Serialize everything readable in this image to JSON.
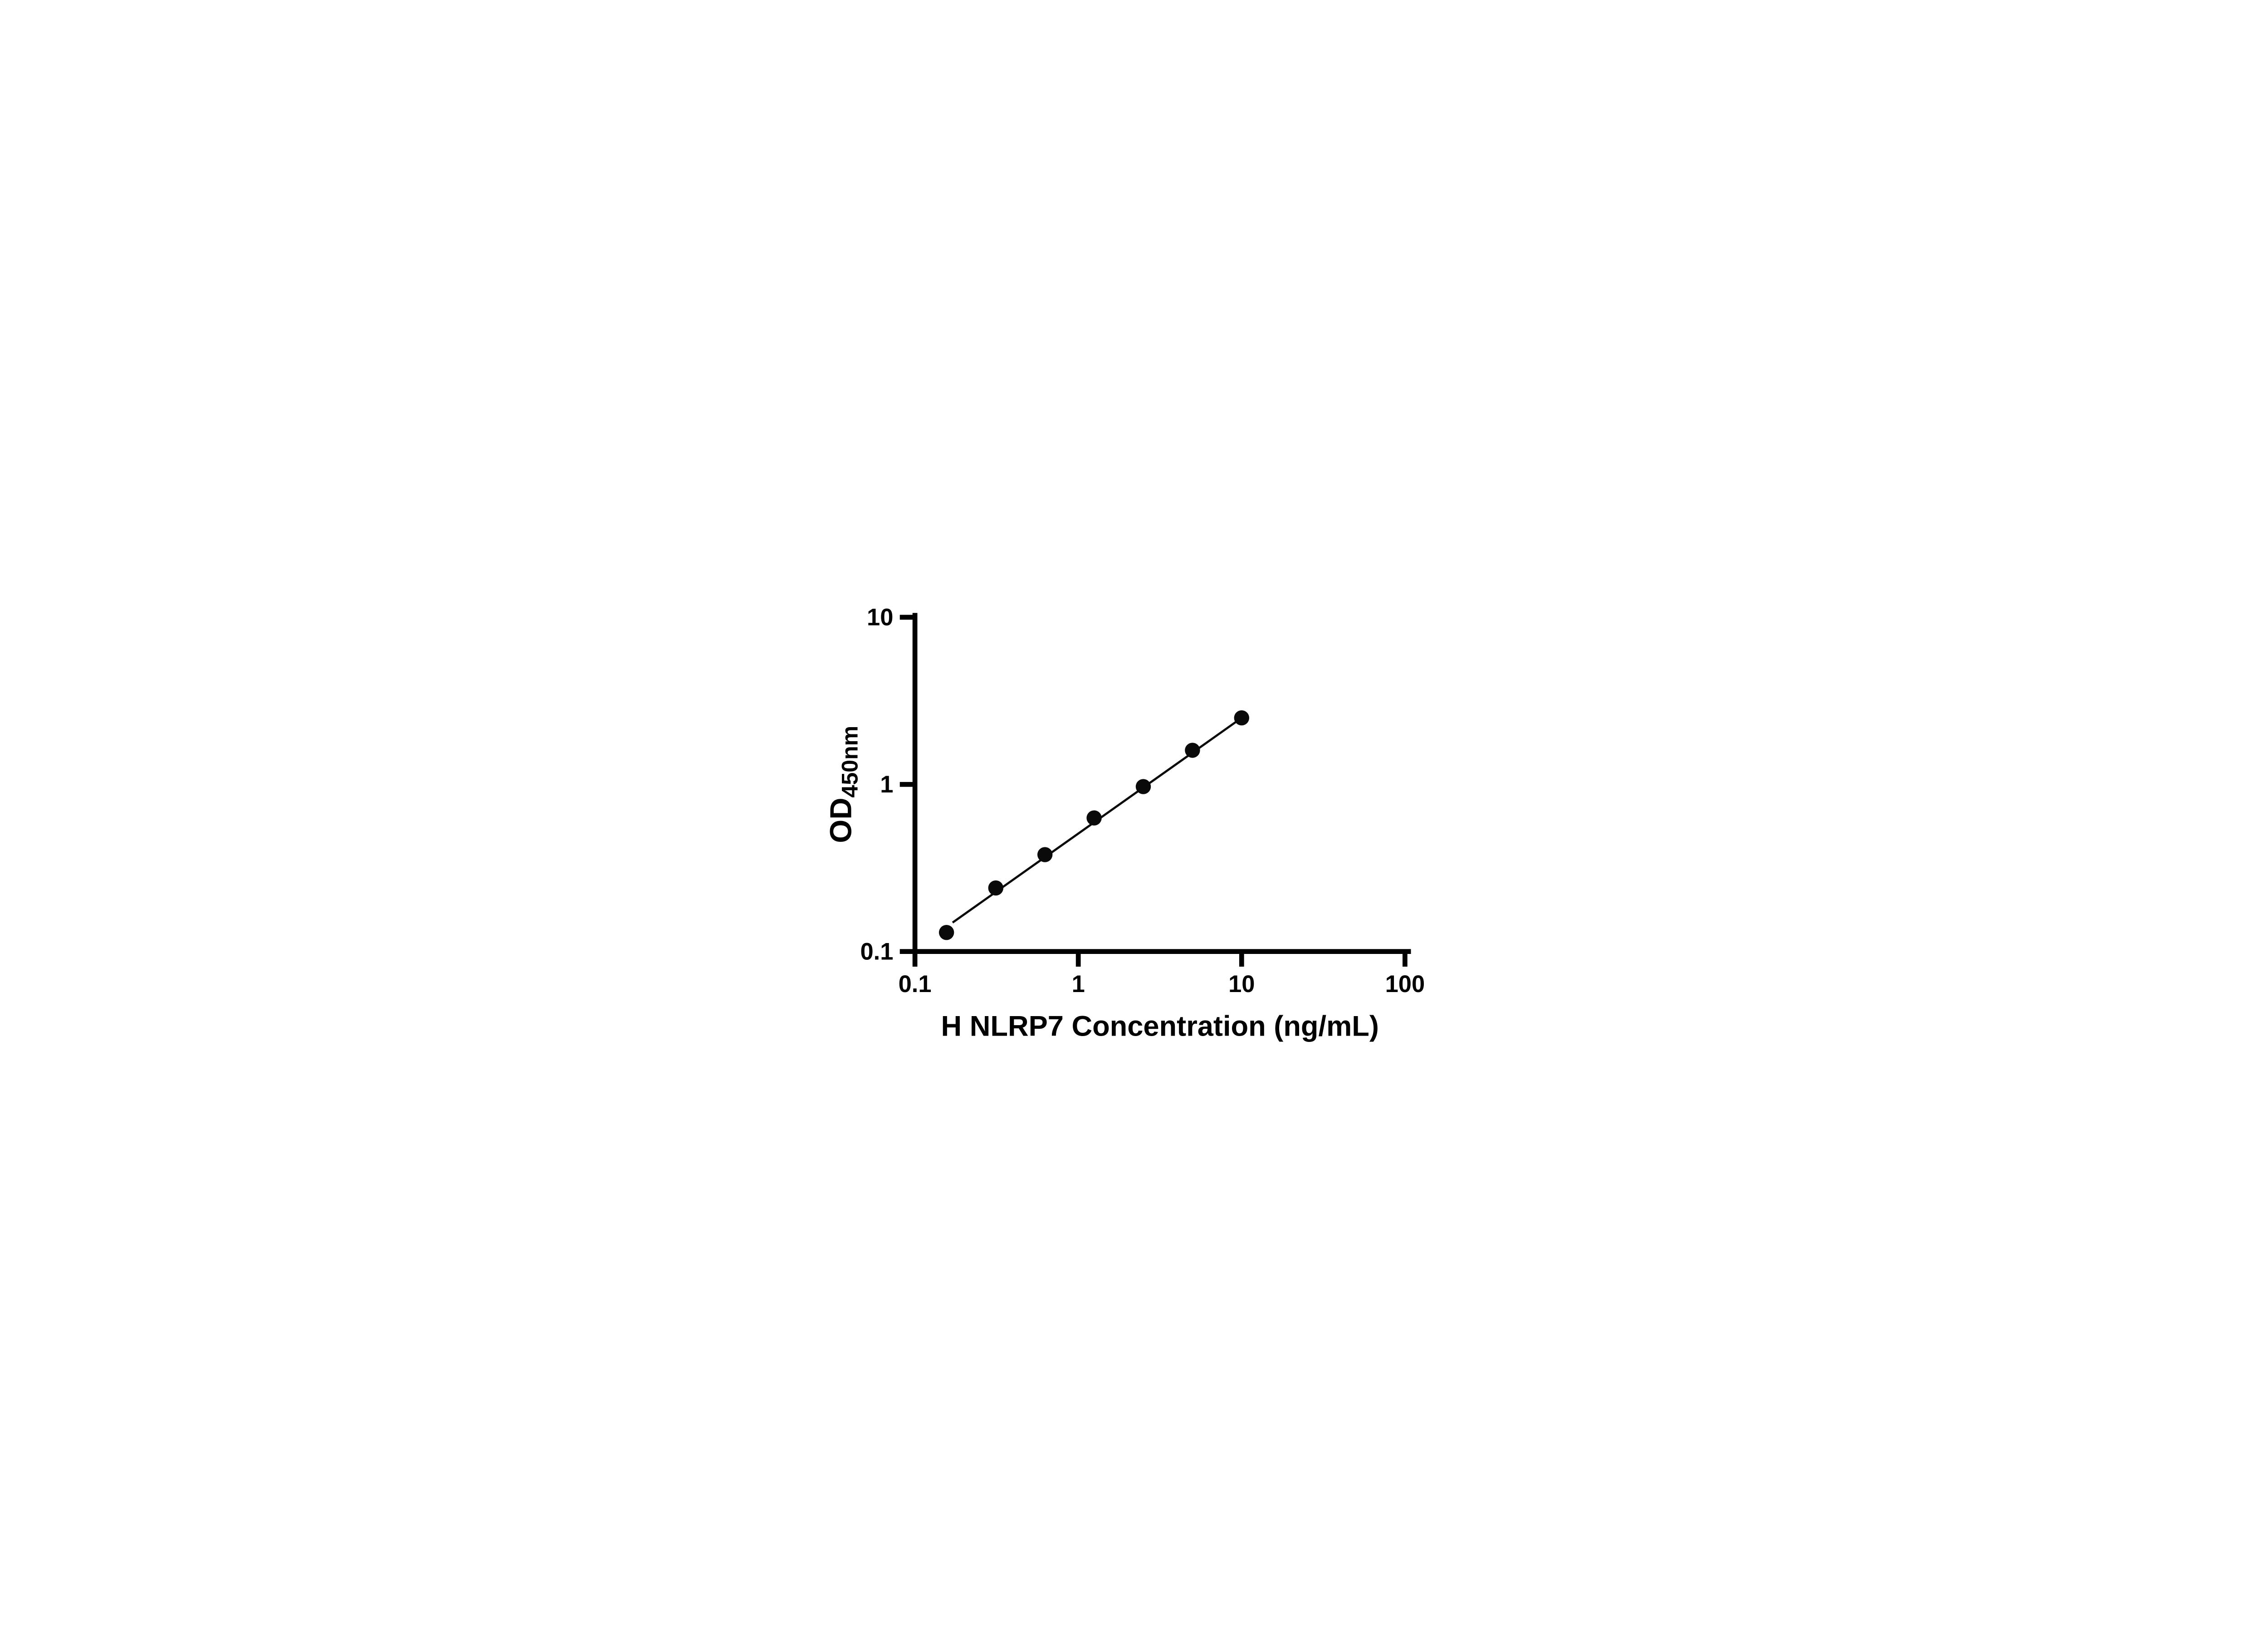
{
  "page": {
    "background": "#ffffff"
  },
  "chart_data": {
    "type": "scatter",
    "title": "",
    "xlabel": "H NLRP7 Concentration (ng/mL)",
    "ylabel": "OD450nm",
    "ylabel_main": "OD",
    "ylabel_sub": "450nm",
    "x_scale": "log",
    "y_scale": "log",
    "xlim": [
      0.1,
      100
    ],
    "ylim": [
      0.1,
      10
    ],
    "x_ticks": [
      "0.1",
      "1",
      "10",
      "100"
    ],
    "y_ticks": [
      "0.1",
      "1",
      "10"
    ],
    "grid": false,
    "legend": false,
    "marker": {
      "shape": "circle",
      "color": "#0a0a0a",
      "radius": 14
    },
    "line": {
      "color": "#0a0a0a",
      "width": 4
    },
    "axis": {
      "color": "#000000",
      "width": 9,
      "tick_length": 28
    },
    "points": [
      {
        "x": 0.156,
        "y": 0.13
      },
      {
        "x": 0.3125,
        "y": 0.24
      },
      {
        "x": 0.625,
        "y": 0.38
      },
      {
        "x": 1.25,
        "y": 0.63
      },
      {
        "x": 2.5,
        "y": 0.97
      },
      {
        "x": 5,
        "y": 1.6
      },
      {
        "x": 10,
        "y": 2.5
      }
    ],
    "trend_line": {
      "x1": 0.17,
      "y1": 0.149,
      "x2": 10,
      "y2": 2.5
    }
  }
}
